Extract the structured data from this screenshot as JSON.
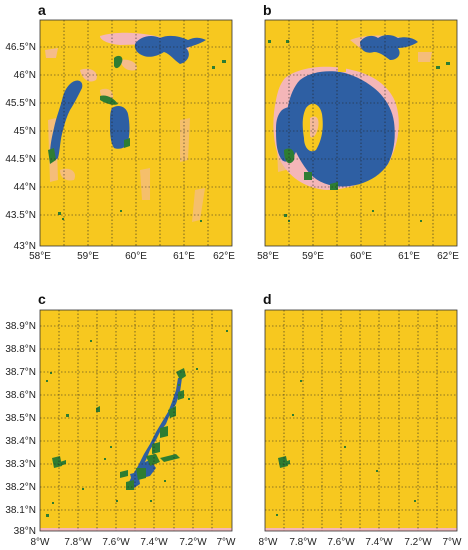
{
  "colors": {
    "land": "#f7c81f",
    "water": "#2e5fa3",
    "vegetation": "#2e7d32",
    "mixed": "#f4b6b8"
  },
  "panels": [
    {
      "id": "a",
      "label": "a",
      "scene": "aral-early",
      "x_ticks": [
        "58°E",
        "59°E",
        "60°E",
        "61°E",
        "62°E"
      ],
      "y_ticks": [
        "46.5°N",
        "46°N",
        "45.5°N",
        "45°N",
        "44.5°N",
        "44°N",
        "43.5°N",
        "43°N"
      ]
    },
    {
      "id": "b",
      "label": "b",
      "scene": "aral-late",
      "x_ticks": [
        "58°E",
        "59°E",
        "60°E",
        "61°E",
        "62°E"
      ],
      "y_ticks": []
    },
    {
      "id": "c",
      "label": "c",
      "scene": "reservoir-full",
      "x_ticks": [
        "8°W",
        "7.8°W",
        "7.6°W",
        "7.4°W",
        "7.2°W",
        "7°W"
      ],
      "y_ticks": [
        "38.9°N",
        "38.8°N",
        "38.7°N",
        "38.6°N",
        "38.5°N",
        "38.4°N",
        "38.3°N",
        "38.2°N",
        "38.1°N",
        "38°N"
      ]
    },
    {
      "id": "d",
      "label": "d",
      "scene": "reservoir-empty",
      "x_ticks": [
        "8°W",
        "7.8°W",
        "7.6°W",
        "7.4°W",
        "7.2°W",
        "7°W"
      ],
      "y_ticks": []
    }
  ]
}
